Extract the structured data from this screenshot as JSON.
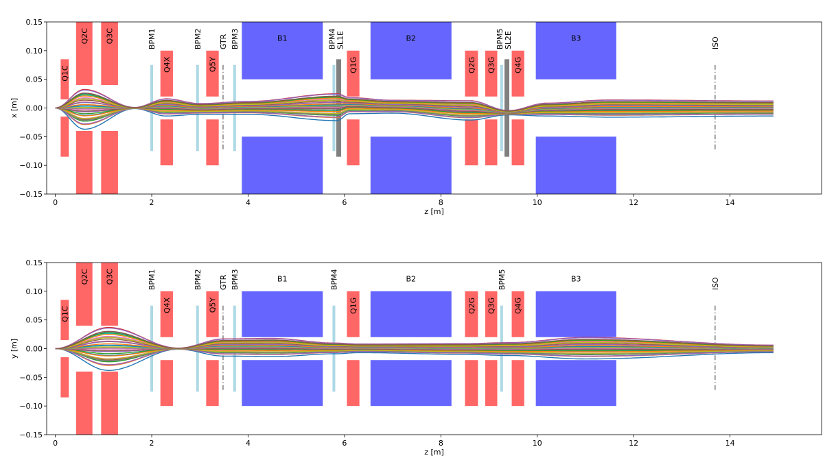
{
  "chart_data": [
    {
      "type": "line",
      "title": "",
      "xlabel": "z [m]",
      "ylabel": "x [m]",
      "plane": "x",
      "xlim": [
        -0.18,
        15.9
      ],
      "ylim": [
        -0.15,
        0.15
      ],
      "xticks": [
        0,
        2,
        4,
        6,
        8,
        10,
        12,
        14
      ],
      "yticks": [
        -0.15,
        -0.1,
        -0.05,
        0.0,
        0.05,
        0.1,
        0.15
      ],
      "ytick_labels": [
        "−0.15",
        "−0.10",
        "−0.05",
        "0.00",
        "0.05",
        "0.10",
        "0.15"
      ],
      "grid": false,
      "n_rays": 36,
      "beam_envelope": [
        [
          0,
          0,
          0
        ],
        [
          0.6,
          0,
          0.037
        ],
        [
          1.65,
          0,
          0.001
        ],
        [
          2.3,
          0.002,
          0.016
        ],
        [
          3.0,
          -0.001,
          0.01
        ],
        [
          4.0,
          0.001,
          0.012
        ],
        [
          5.85,
          0.003,
          0.025
        ],
        [
          6.1,
          0.005,
          0.015
        ],
        [
          7.0,
          0.003,
          0.012
        ],
        [
          8.6,
          -0.003,
          0.018
        ],
        [
          9.4,
          -0.008,
          0.004
        ],
        [
          10.2,
          -0.002,
          0.012
        ],
        [
          11.5,
          0,
          0.016
        ],
        [
          14.9,
          0,
          0.014
        ]
      ],
      "beam_envelope_columns": [
        "z",
        "center",
        "half_width"
      ],
      "elements": [
        {
          "name": "Q1C",
          "kind": "quad",
          "z": [
            0.11,
            0.28
          ],
          "aperture": [
            0.015,
            0.085
          ]
        },
        {
          "name": "Q2C",
          "kind": "quad",
          "z": [
            0.43,
            0.77
          ],
          "aperture": [
            0.04,
            0.15
          ]
        },
        {
          "name": "Q3C",
          "kind": "quad",
          "z": [
            0.95,
            1.3
          ],
          "aperture": [
            0.04,
            0.15
          ]
        },
        {
          "name": "BPM1",
          "kind": "bpm",
          "z": [
            2.0
          ],
          "aperture": [
            0.075
          ]
        },
        {
          "name": "Q4X",
          "kind": "quad",
          "z": [
            2.18,
            2.44
          ],
          "aperture": [
            0.02,
            0.1
          ]
        },
        {
          "name": "BPM2",
          "kind": "bpm",
          "z": [
            2.95
          ],
          "aperture": [
            0.075
          ]
        },
        {
          "name": "Q5Y",
          "kind": "quad",
          "z": [
            3.13,
            3.39
          ],
          "aperture": [
            0.02,
            0.1
          ]
        },
        {
          "name": "GTR",
          "kind": "marker",
          "z": [
            3.48
          ],
          "aperture": [
            0.075
          ]
        },
        {
          "name": "BPM3",
          "kind": "bpm",
          "z": [
            3.72
          ],
          "aperture": [
            0.075
          ]
        },
        {
          "name": "B1",
          "kind": "dipole",
          "z": [
            3.87,
            5.55
          ],
          "aperture": [
            0.05,
            0.15
          ]
        },
        {
          "name": "BPM4",
          "kind": "bpm",
          "z": [
            5.78
          ],
          "aperture": [
            0.075
          ]
        },
        {
          "name": "SL1E",
          "kind": "slit",
          "z": [
            5.88
          ],
          "aperture": [
            0.085
          ]
        },
        {
          "name": "Q1G",
          "kind": "quad",
          "z": [
            6.05,
            6.31
          ],
          "aperture": [
            0.02,
            0.1
          ]
        },
        {
          "name": "B2",
          "kind": "dipole",
          "z": [
            6.54,
            8.22
          ],
          "aperture": [
            0.05,
            0.15
          ]
        },
        {
          "name": "Q2G",
          "kind": "quad",
          "z": [
            8.5,
            8.77
          ],
          "aperture": [
            0.02,
            0.1
          ]
        },
        {
          "name": "Q3G",
          "kind": "quad",
          "z": [
            8.92,
            9.17
          ],
          "aperture": [
            0.02,
            0.1
          ]
        },
        {
          "name": "BPM5",
          "kind": "bpm",
          "z": [
            9.26
          ],
          "aperture": [
            0.075
          ]
        },
        {
          "name": "SL2E",
          "kind": "slit",
          "z": [
            9.37
          ],
          "aperture": [
            0.085
          ]
        },
        {
          "name": "Q4G",
          "kind": "quad",
          "z": [
            9.47,
            9.73
          ],
          "aperture": [
            0.02,
            0.1
          ]
        },
        {
          "name": "B3",
          "kind": "dipole",
          "z": [
            9.97,
            11.64
          ],
          "aperture": [
            0.05,
            0.15
          ]
        },
        {
          "name": "ISO",
          "kind": "marker",
          "z": [
            13.69
          ],
          "aperture": [
            0.075
          ]
        }
      ]
    },
    {
      "type": "line",
      "title": "",
      "xlabel": "z [m]",
      "ylabel": "y [m]",
      "plane": "y",
      "xlim": [
        -0.18,
        15.9
      ],
      "ylim": [
        -0.15,
        0.15
      ],
      "xticks": [
        0,
        2,
        4,
        6,
        8,
        10,
        12,
        14
      ],
      "yticks": [
        -0.15,
        -0.1,
        -0.05,
        0.0,
        0.05,
        0.1,
        0.15
      ],
      "ytick_labels": [
        "−0.15",
        "−0.10",
        "−0.05",
        "0.00",
        "0.05",
        "0.10",
        "0.15"
      ],
      "grid": false,
      "n_rays": 36,
      "beam_envelope": [
        [
          0,
          0,
          0
        ],
        [
          1.1,
          0.002,
          0.04
        ],
        [
          2.55,
          0,
          0.001
        ],
        [
          3.5,
          0.003,
          0.016
        ],
        [
          4.5,
          0.003,
          0.017
        ],
        [
          5.8,
          0.001,
          0.01
        ],
        [
          6.3,
          0.001,
          0.008
        ],
        [
          8.5,
          0,
          0.01
        ],
        [
          9.4,
          0,
          0.012
        ],
        [
          11.0,
          0.002,
          0.02
        ],
        [
          14.9,
          0,
          0.007
        ]
      ],
      "beam_envelope_columns": [
        "z",
        "center",
        "half_width"
      ],
      "elements": [
        {
          "name": "Q1C",
          "kind": "quad",
          "z": [
            0.11,
            0.28
          ],
          "aperture": [
            0.015,
            0.085
          ]
        },
        {
          "name": "Q2C",
          "kind": "quad",
          "z": [
            0.43,
            0.77
          ],
          "aperture": [
            0.04,
            0.15
          ]
        },
        {
          "name": "Q3C",
          "kind": "quad",
          "z": [
            0.95,
            1.3
          ],
          "aperture": [
            0.04,
            0.15
          ]
        },
        {
          "name": "BPM1",
          "kind": "bpm",
          "z": [
            2.0
          ],
          "aperture": [
            0.075
          ]
        },
        {
          "name": "Q4X",
          "kind": "quad",
          "z": [
            2.18,
            2.44
          ],
          "aperture": [
            0.02,
            0.1
          ]
        },
        {
          "name": "BPM2",
          "kind": "bpm",
          "z": [
            2.95
          ],
          "aperture": [
            0.075
          ]
        },
        {
          "name": "Q5Y",
          "kind": "quad",
          "z": [
            3.13,
            3.39
          ],
          "aperture": [
            0.02,
            0.1
          ]
        },
        {
          "name": "GTR",
          "kind": "marker",
          "z": [
            3.48
          ],
          "aperture": [
            0.075
          ]
        },
        {
          "name": "BPM3",
          "kind": "bpm",
          "z": [
            3.72
          ],
          "aperture": [
            0.075
          ]
        },
        {
          "name": "B1",
          "kind": "dipole",
          "z": [
            3.87,
            5.55
          ],
          "aperture": [
            0.02,
            0.1
          ]
        },
        {
          "name": "BPM4",
          "kind": "bpm",
          "z": [
            5.78
          ],
          "aperture": [
            0.075
          ]
        },
        {
          "name": "Q1G",
          "kind": "quad",
          "z": [
            6.05,
            6.31
          ],
          "aperture": [
            0.02,
            0.1
          ]
        },
        {
          "name": "B2",
          "kind": "dipole",
          "z": [
            6.54,
            8.22
          ],
          "aperture": [
            0.02,
            0.1
          ]
        },
        {
          "name": "Q2G",
          "kind": "quad",
          "z": [
            8.5,
            8.77
          ],
          "aperture": [
            0.02,
            0.1
          ]
        },
        {
          "name": "Q3G",
          "kind": "quad",
          "z": [
            8.92,
            9.17
          ],
          "aperture": [
            0.02,
            0.1
          ]
        },
        {
          "name": "BPM5",
          "kind": "bpm",
          "z": [
            9.26
          ],
          "aperture": [
            0.075
          ]
        },
        {
          "name": "Q4G",
          "kind": "quad",
          "z": [
            9.47,
            9.73
          ],
          "aperture": [
            0.02,
            0.1
          ]
        },
        {
          "name": "B3",
          "kind": "dipole",
          "z": [
            9.97,
            11.64
          ],
          "aperture": [
            0.02,
            0.1
          ]
        },
        {
          "name": "ISO",
          "kind": "marker",
          "z": [
            13.69
          ],
          "aperture": [
            0.075
          ]
        }
      ]
    }
  ],
  "colors": {
    "quad": "#ff6666",
    "dipole": "#6666ff",
    "bpm": "#add8e6",
    "slit": "#808080",
    "marker": "#808080",
    "rays": [
      "#1f77b4",
      "#ff7f0e",
      "#2ca02c",
      "#d62728",
      "#9467bd",
      "#8c564b",
      "#e377c2",
      "#7f7f7f",
      "#bcbd22",
      "#17becf"
    ]
  }
}
